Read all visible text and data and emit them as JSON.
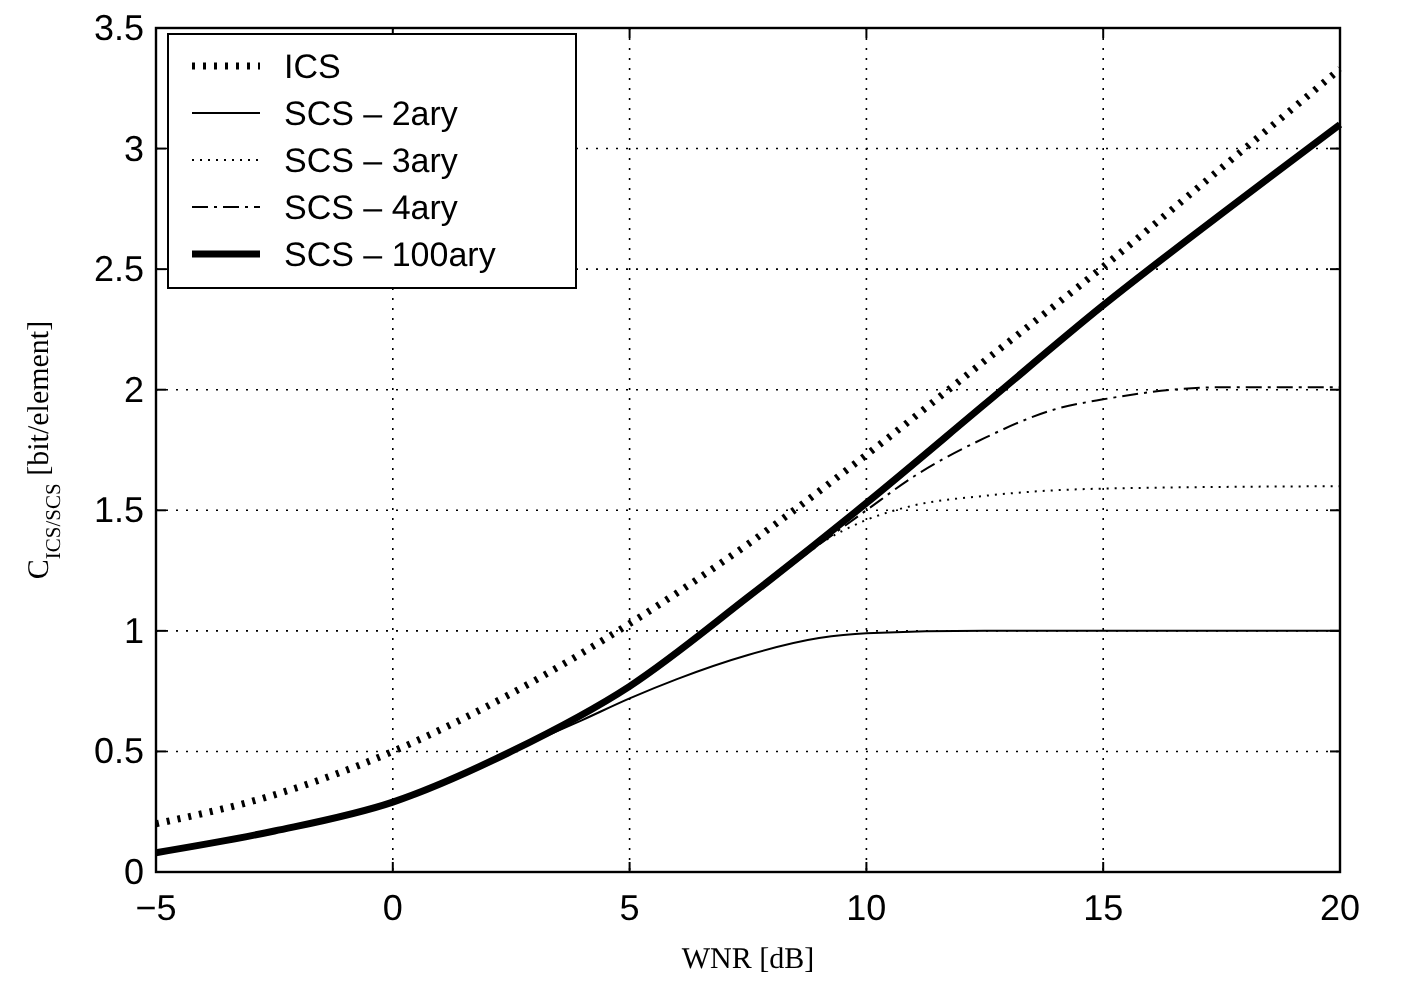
{
  "chart_data": {
    "type": "line",
    "xlabel": "WNR [dB]",
    "ylabel": "C$_{ICS/SCS}$ [bit/element]",
    "xlim": [
      -5,
      20
    ],
    "xticks": [
      -5,
      0,
      5,
      10,
      15,
      20
    ],
    "ylim": [
      0,
      3.5
    ],
    "yticks": [
      0,
      0.5,
      1,
      1.5,
      2,
      2.5,
      3,
      3.5
    ],
    "grid": true,
    "legend": "top left",
    "marker": "none",
    "series": [
      {
        "name": "ICS",
        "color": "#000000",
        "line_style": "dotted",
        "x": [
          -5,
          -2.5,
          0,
          2.5,
          5,
          7.5,
          10,
          12.5,
          15,
          17.5,
          20
        ],
        "values": [
          0.2,
          0.32,
          0.5,
          0.74,
          1.03,
          1.36,
          1.73,
          2.12,
          2.51,
          2.92,
          3.33
        ]
      },
      {
        "name": "SCS – 2ary",
        "color": "#000000",
        "line_style": "solid",
        "x": [
          -5,
          -2.5,
          0,
          2.5,
          4,
          5,
          6,
          7.5,
          9,
          10,
          12.5,
          15,
          20
        ],
        "values": [
          0.08,
          0.17,
          0.29,
          0.5,
          0.63,
          0.72,
          0.8,
          0.9,
          0.97,
          0.99,
          1.0,
          1.0,
          1.0
        ]
      },
      {
        "name": "SCS – 3ary",
        "color": "#000000",
        "line_style": "dotted",
        "x": [
          -5,
          -2.5,
          0,
          2.5,
          5,
          7.5,
          9,
          10,
          11,
          12.5,
          15,
          20
        ],
        "values": [
          0.08,
          0.17,
          0.29,
          0.5,
          0.77,
          1.14,
          1.36,
          1.46,
          1.52,
          1.56,
          1.59,
          1.6
        ]
      },
      {
        "name": "SCS – 4ary",
        "color": "#000000",
        "line_style": "dashed",
        "x": [
          -5,
          -2.5,
          0,
          2.5,
          5,
          7.5,
          10,
          11,
          12.5,
          14,
          15,
          17.5,
          20
        ],
        "values": [
          0.08,
          0.17,
          0.29,
          0.5,
          0.77,
          1.14,
          1.5,
          1.64,
          1.8,
          1.92,
          1.96,
          2.01,
          2.01
        ]
      },
      {
        "name": "SCS – 100ary",
        "color": "#000000",
        "line_style": "solid",
        "x": [
          -5,
          -2.5,
          0,
          2.5,
          5,
          7.5,
          10,
          12.5,
          15,
          17.5,
          20
        ],
        "values": [
          0.08,
          0.17,
          0.29,
          0.5,
          0.77,
          1.14,
          1.53,
          1.94,
          2.35,
          2.73,
          3.1
        ]
      }
    ]
  }
}
